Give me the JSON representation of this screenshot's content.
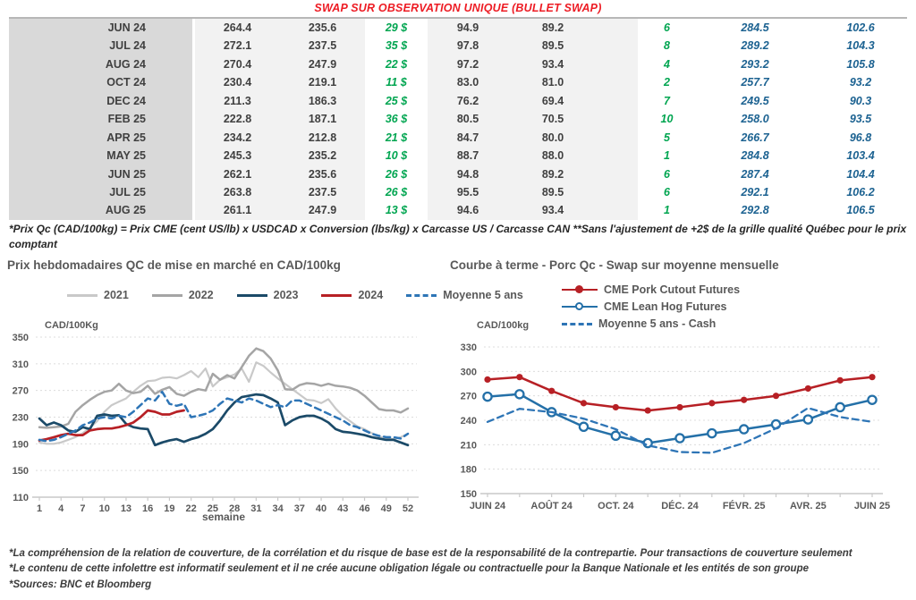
{
  "title": "SWAP SUR OBSERVATION UNIQUE (BULLET SWAP)",
  "colors": {
    "title_red": "#ed1c24",
    "green": "#00a550",
    "blue": "#1c6291",
    "month_band": "#d9d9d9",
    "value_band": "#f2f2f2",
    "chart_text": "#595959"
  },
  "table": {
    "rows": [
      {
        "month": "JUN 24",
        "v1": "264.4",
        "v2": "235.6",
        "g1": "29 $",
        "v3": "94.9",
        "v4": "89.2",
        "g2": "6",
        "b1": "284.5",
        "b2": "102.6"
      },
      {
        "month": "JUL 24",
        "v1": "272.1",
        "v2": "237.5",
        "g1": "35 $",
        "v3": "97.8",
        "v4": "89.5",
        "g2": "8",
        "b1": "289.2",
        "b2": "104.3"
      },
      {
        "month": "AUG 24",
        "v1": "270.4",
        "v2": "247.9",
        "g1": "22 $",
        "v3": "97.2",
        "v4": "93.4",
        "g2": "4",
        "b1": "293.2",
        "b2": "105.8"
      },
      {
        "month": "OCT 24",
        "v1": "230.4",
        "v2": "219.1",
        "g1": "11 $",
        "v3": "83.0",
        "v4": "81.0",
        "g2": "2",
        "b1": "257.7",
        "b2": "93.2"
      },
      {
        "month": "DEC 24",
        "v1": "211.3",
        "v2": "186.3",
        "g1": "25 $",
        "v3": "76.2",
        "v4": "69.4",
        "g2": "7",
        "b1": "249.5",
        "b2": "90.3"
      },
      {
        "month": "FEB 25",
        "v1": "222.8",
        "v2": "187.1",
        "g1": "36 $",
        "v3": "80.5",
        "v4": "70.5",
        "g2": "10",
        "b1": "258.0",
        "b2": "93.5"
      },
      {
        "month": "APR 25",
        "v1": "234.2",
        "v2": "212.8",
        "g1": "21 $",
        "v3": "84.7",
        "v4": "80.0",
        "g2": "5",
        "b1": "266.7",
        "b2": "96.8"
      },
      {
        "month": "MAY 25",
        "v1": "245.3",
        "v2": "235.2",
        "g1": "10 $",
        "v3": "88.7",
        "v4": "88.0",
        "g2": "1",
        "b1": "284.8",
        "b2": "103.4"
      },
      {
        "month": "JUN 25",
        "v1": "262.1",
        "v2": "235.6",
        "g1": "26 $",
        "v3": "94.8",
        "v4": "89.2",
        "g2": "6",
        "b1": "287.4",
        "b2": "104.4"
      },
      {
        "month": "JUL 25",
        "v1": "263.8",
        "v2": "237.5",
        "g1": "26 $",
        "v3": "95.5",
        "v4": "89.5",
        "g2": "6",
        "b1": "292.1",
        "b2": "106.2"
      },
      {
        "month": "AUG 25",
        "v1": "261.1",
        "v2": "247.9",
        "g1": "13 $",
        "v3": "94.6",
        "v4": "93.4",
        "g2": "1",
        "b1": "292.8",
        "b2": "106.5"
      }
    ]
  },
  "table_footnote": "*Prix Qc (CAD/100kg) = Prix CME (cent US/lb) x USDCAD x Conversion (lbs/kg) x Carcasse US / Carcasse CAN **Sans l'ajustement de +2$ de la grille qualité Québec pour le prix comptant",
  "chart_data": [
    {
      "type": "line",
      "title": "Prix hebdomadaires QC de mise en marché en CAD/100kg",
      "ylabel": "CAD/100Kg",
      "xlabel": "semaine",
      "ylim": [
        110,
        350
      ],
      "yticks": [
        110,
        150,
        190,
        230,
        270,
        310,
        350
      ],
      "xticks": [
        1,
        4,
        7,
        10,
        13,
        16,
        19,
        22,
        25,
        28,
        31,
        34,
        37,
        40,
        43,
        46,
        49,
        52
      ],
      "x_count": 52,
      "grid": true,
      "legend_position": "top",
      "series": [
        {
          "name": "2021",
          "color": "#c9c9c9",
          "style": "solid",
          "width": 2.2,
          "values": [
            192,
            190,
            190,
            192,
            196,
            200,
            206,
            214,
            224,
            238,
            248,
            253,
            258,
            268,
            277,
            284,
            285,
            289,
            290,
            288,
            293,
            299,
            290,
            303,
            276,
            286,
            290,
            294,
            303,
            283,
            312,
            307,
            297,
            288,
            280,
            272,
            264,
            256,
            255,
            251,
            257,
            243,
            232,
            224,
            216,
            212,
            206,
            201,
            198,
            197,
            200,
            205
          ]
        },
        {
          "name": "2022",
          "color": "#a5a5a5",
          "style": "solid",
          "width": 2.5,
          "values": [
            215,
            214,
            215,
            216,
            220,
            238,
            248,
            256,
            263,
            268,
            270,
            280,
            270,
            266,
            268,
            277,
            265,
            271,
            275,
            265,
            262,
            268,
            272,
            270,
            295,
            286,
            293,
            288,
            305,
            322,
            333,
            329,
            318,
            300,
            272,
            271,
            278,
            281,
            280,
            277,
            280,
            277,
            276,
            274,
            270,
            262,
            252,
            242,
            240,
            240,
            237,
            243
          ]
        },
        {
          "name": "2023",
          "color": "#1b4a68",
          "style": "solid",
          "width": 2.7,
          "values": [
            228,
            218,
            222,
            218,
            210,
            208,
            215,
            212,
            232,
            234,
            232,
            233,
            220,
            215,
            213,
            212,
            188,
            192,
            195,
            197,
            193,
            197,
            200,
            205,
            212,
            225,
            240,
            252,
            260,
            262,
            264,
            263,
            258,
            252,
            218,
            225,
            230,
            232,
            232,
            228,
            222,
            212,
            208,
            207,
            205,
            203,
            200,
            198,
            196,
            196,
            192,
            188
          ]
        },
        {
          "name": "2024",
          "color": "#b72025",
          "style": "solid",
          "width": 2.7,
          "values": [
            195,
            197,
            200,
            203,
            205,
            203,
            203,
            210,
            212,
            213,
            213,
            215,
            218,
            222,
            230,
            240,
            238,
            234,
            234,
            238,
            240
          ]
        },
        {
          "name": "Moyenne 5 ans",
          "color": "#2e75b6",
          "style": "dashed",
          "width": 2.5,
          "values": [
            196,
            194,
            196,
            200,
            205,
            210,
            218,
            222,
            228,
            230,
            228,
            232,
            230,
            238,
            248,
            258,
            255,
            268,
            250,
            247,
            250,
            230,
            232,
            235,
            240,
            250,
            258,
            255,
            252,
            258,
            255,
            250,
            245,
            248,
            245,
            255,
            255,
            250,
            245,
            240,
            235,
            230,
            225,
            218,
            215,
            210,
            205,
            202,
            200,
            200,
            198,
            205
          ]
        }
      ]
    },
    {
      "type": "line",
      "title": "Courbe à terme - Porc Qc - Swap sur moyenne mensuelle",
      "ylabel": "CAD/100kg",
      "ylim": [
        150,
        330
      ],
      "yticks": [
        150,
        180,
        210,
        240,
        270,
        300,
        330
      ],
      "categories": [
        "JUIN 24",
        "JUIL. 24",
        "AOÛT 24",
        "SEPT. 24",
        "OCT. 24",
        "NOV. 24",
        "DÉC. 24",
        "JANV. 25",
        "FÉVR. 25",
        "MARS 25",
        "AVR. 25",
        "MAI 25",
        "JUIN 25"
      ],
      "xtick_labels": [
        "JUIN 24",
        "AOÛT 24",
        "OCT. 24",
        "DÉC. 24",
        "FÉVR. 25",
        "AVR. 25",
        "JUIN 25"
      ],
      "xtick_every": 2,
      "grid": true,
      "legend_position": "top",
      "series": [
        {
          "name": "CME Pork Cutout Futures",
          "color": "#b72025",
          "style": "solid",
          "marker": "filled-circle",
          "width": 2.5,
          "values": [
            290,
            293,
            276,
            261,
            256,
            252,
            256,
            261,
            265,
            270,
            279,
            289,
            293
          ]
        },
        {
          "name": "CME Lean Hog Futures",
          "color": "#2470a8",
          "style": "solid",
          "marker": "open-circle",
          "width": 2.5,
          "values": [
            269,
            272,
            250,
            232,
            221,
            212,
            218,
            224,
            229,
            235,
            241,
            256,
            265
          ]
        },
        {
          "name": "Moyenne 5 ans - Cash",
          "color": "#2e75b6",
          "style": "dashed",
          "width": 2.3,
          "values": [
            238,
            254,
            250,
            242,
            229,
            209,
            201,
            200,
            212,
            230,
            255,
            244,
            238
          ]
        }
      ]
    }
  ],
  "notes": [
    "*La compréhension de la relation de couverture, de la corrélation et du risque de base est de la responsabilité de la contrepartie. Pour transactions de couverture seulement",
    "*Le contenu de cette infolettre est informatif seulement et il ne crée aucune obligation légale ou contractuelle pour la Banque Nationale et les entités de son groupe",
    "*Sources: BNC et Bloomberg"
  ]
}
